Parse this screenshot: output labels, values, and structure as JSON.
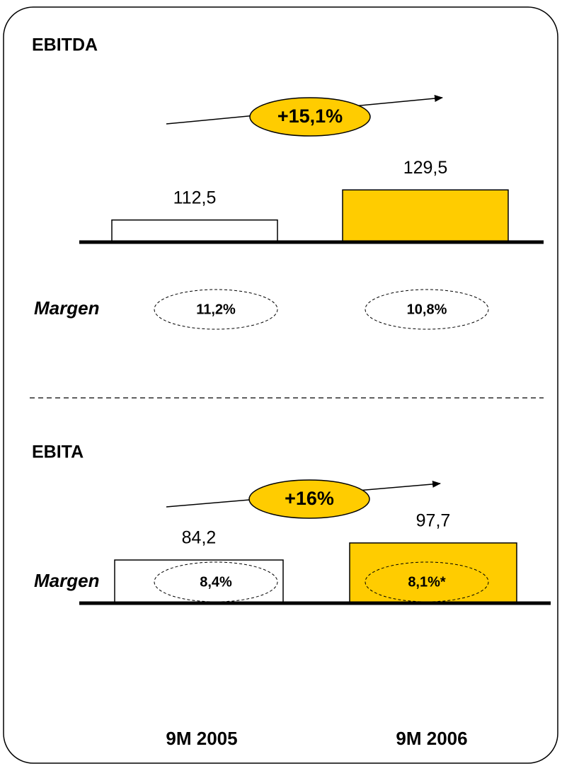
{
  "chart_data": [
    {
      "type": "bar",
      "title": "EBITDA",
      "values": [
        112.5,
        129.5
      ],
      "value_labels": [
        "112,5",
        "129,5"
      ],
      "colors": [
        "#ffffff",
        "#ffcc00"
      ],
      "ylim": [
        100,
        140
      ],
      "growth": "+15,1%",
      "margin_label": "Margen",
      "margins": [
        "11,2%",
        "10,8%"
      ]
    },
    {
      "type": "bar",
      "title": "EBITA",
      "categories": [
        "9M 2005",
        "9M 2006"
      ],
      "values": [
        84.2,
        97.7
      ],
      "value_labels": [
        "84,2",
        "97,7"
      ],
      "colors": [
        "#ffffff",
        "#ffcc00"
      ],
      "ylim": [
        50,
        110
      ],
      "growth": "+16%",
      "margin_label": "Margen",
      "margins": [
        "8,4%",
        "8,1%*"
      ]
    }
  ]
}
